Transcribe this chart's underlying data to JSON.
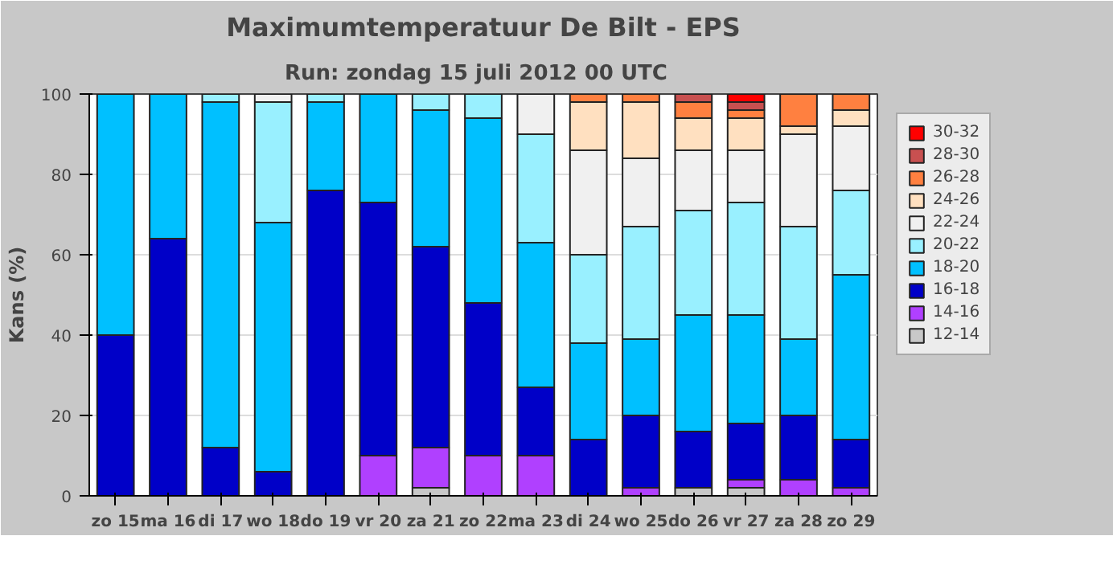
{
  "chart_data": {
    "type": "bar",
    "stacked": true,
    "title": "Maximumtemperatuur De Bilt - EPS",
    "subtitle": "Run: zondag 15 juli 2012   00 UTC",
    "ylabel": "Kans (%)",
    "categories": [
      "zo 15",
      "ma 16",
      "di 17",
      "wo 18",
      "do 19",
      "vr 20",
      "za 21",
      "zo 22",
      "ma 23",
      "di 24",
      "wo 25",
      "do 26",
      "vr 27",
      "za 28",
      "zo 29"
    ],
    "series": [
      {
        "name": "12-14",
        "color": "#c8c8c8",
        "values": [
          null,
          null,
          null,
          null,
          null,
          null,
          2,
          null,
          null,
          null,
          null,
          2,
          2,
          null,
          null
        ]
      },
      {
        "name": "14-16",
        "color": "#b040ff",
        "values": [
          null,
          null,
          null,
          null,
          null,
          10,
          10,
          10,
          10,
          null,
          2,
          null,
          2,
          4,
          2
        ]
      },
      {
        "name": "16-18",
        "color": "#0000c8",
        "values": [
          40,
          64,
          12,
          6,
          76,
          63,
          50,
          38,
          17,
          14,
          18,
          14,
          14,
          16,
          12
        ]
      },
      {
        "name": "18-20",
        "color": "#00c0ff",
        "values": [
          60,
          36,
          86,
          62,
          22,
          27,
          34,
          46,
          36,
          24,
          19,
          29,
          27,
          19,
          41
        ]
      },
      {
        "name": "20-22",
        "color": "#99f0ff",
        "values": [
          null,
          null,
          2,
          30,
          2,
          null,
          4,
          6,
          27,
          22,
          28,
          26,
          28,
          28,
          21
        ]
      },
      {
        "name": "22-24",
        "color": "#f0f0f0",
        "values": [
          null,
          null,
          null,
          2,
          null,
          null,
          null,
          null,
          10,
          26,
          17,
          15,
          13,
          23,
          16
        ]
      },
      {
        "name": "24-26",
        "color": "#ffe0c0",
        "values": [
          null,
          null,
          null,
          null,
          null,
          null,
          null,
          null,
          null,
          12,
          14,
          8,
          8,
          2,
          4
        ]
      },
      {
        "name": "26-28",
        "color": "#ff8040",
        "values": [
          null,
          null,
          null,
          null,
          null,
          null,
          null,
          null,
          null,
          2,
          2,
          4,
          2,
          8,
          4
        ]
      },
      {
        "name": "28-30",
        "color": "#c85050",
        "values": [
          null,
          null,
          null,
          null,
          null,
          null,
          null,
          null,
          null,
          null,
          null,
          2,
          2,
          null,
          null
        ]
      },
      {
        "name": "30-32",
        "color": "#ff0000",
        "values": [
          null,
          null,
          null,
          null,
          null,
          null,
          null,
          null,
          null,
          null,
          null,
          null,
          2,
          null,
          null
        ]
      }
    ],
    "ylim": [
      0,
      100
    ],
    "yticks": [
      0,
      20,
      40,
      60,
      80,
      100
    ],
    "grid": "y",
    "legend": "right"
  }
}
